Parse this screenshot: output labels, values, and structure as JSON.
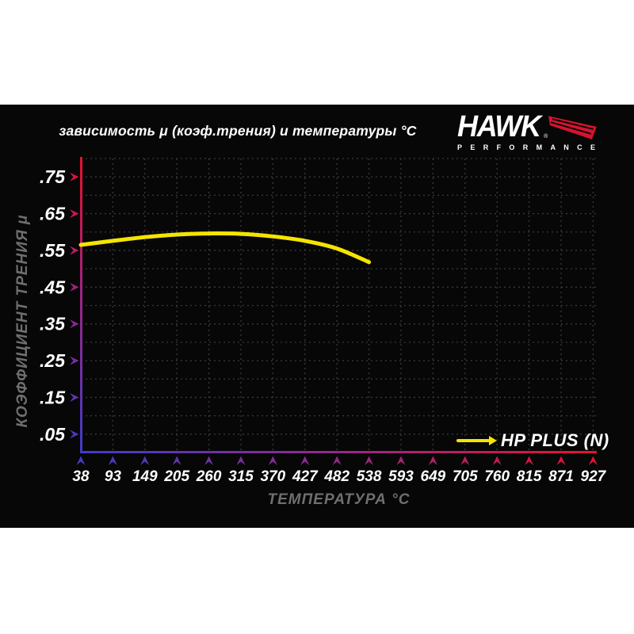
{
  "page": {
    "background": "#ffffff",
    "panel_background": "#070707"
  },
  "header": {
    "title": "зависимость μ (коэф.трения) и температуры °C",
    "logo": {
      "brand": "HAWK",
      "registered": "®",
      "sub": "PERFORMANCE",
      "wing_color": "#D8132F"
    }
  },
  "chart_data": {
    "type": "line",
    "title": "зависимость μ (коэф.трения) и температуры °C",
    "xlabel": "ТЕМПЕРАТУРА °C",
    "ylabel": "КОЭФФИЦИЕНТ ТРЕНИЯ μ",
    "x_ticks": [
      38,
      93,
      149,
      205,
      260,
      315,
      370,
      427,
      482,
      538,
      593,
      649,
      705,
      760,
      815,
      871,
      927
    ],
    "y_ticks": [
      {
        "label": ".05",
        "value": 0.05
      },
      {
        "label": ".15",
        "value": 0.15
      },
      {
        "label": ".25",
        "value": 0.25
      },
      {
        "label": ".35",
        "value": 0.35
      },
      {
        "label": ".45",
        "value": 0.45
      },
      {
        "label": ".55",
        "value": 0.55
      },
      {
        "label": ".65",
        "value": 0.65
      },
      {
        "label": ".75",
        "value": 0.75
      }
    ],
    "ylim": [
      0,
      0.8
    ],
    "grid": true,
    "grid_color": "#3A3A3A",
    "tick_label_color": "#FFFFFF",
    "axis_title_color": "#6F6F6F",
    "axis_gradient": {
      "low": "#403CC8",
      "mid": "#99268C",
      "high": "#E8112D"
    },
    "legend": {
      "label": "HP PLUS (N)",
      "position": "bottom-right",
      "line_color": "#F5E400"
    },
    "series": [
      {
        "name": "HP PLUS (N)",
        "color": "#F5E400",
        "x": [
          38,
          93,
          149,
          205,
          260,
          315,
          370,
          427,
          482,
          538
        ],
        "y": [
          0.565,
          0.576,
          0.586,
          0.593,
          0.596,
          0.595,
          0.588,
          0.576,
          0.555,
          0.518
        ]
      }
    ]
  }
}
